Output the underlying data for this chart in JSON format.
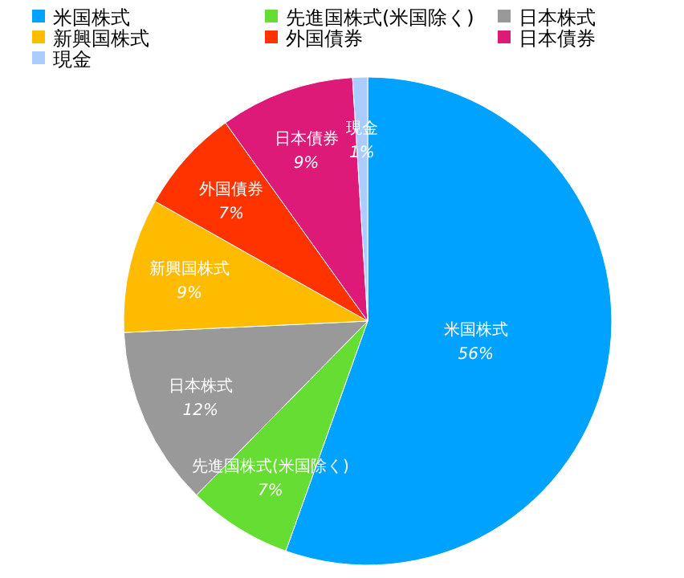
{
  "chart_data": {
    "type": "pie",
    "categories": [
      "米国株式",
      "先進国株式(米国除く)",
      "日本株式",
      "新興国株式",
      "外国債券",
      "日本債券",
      "現金"
    ],
    "values": [
      56,
      7,
      12,
      9,
      7,
      9,
      1
    ],
    "value_labels": [
      "56%",
      "7%",
      "12%",
      "9%",
      "7%",
      "9%",
      "1%"
    ],
    "colors": [
      "#00a2ff",
      "#66dd33",
      "#999999",
      "#ffbb00",
      "#ff3300",
      "#dd1a77",
      "#aaccff"
    ],
    "legend": "top"
  }
}
